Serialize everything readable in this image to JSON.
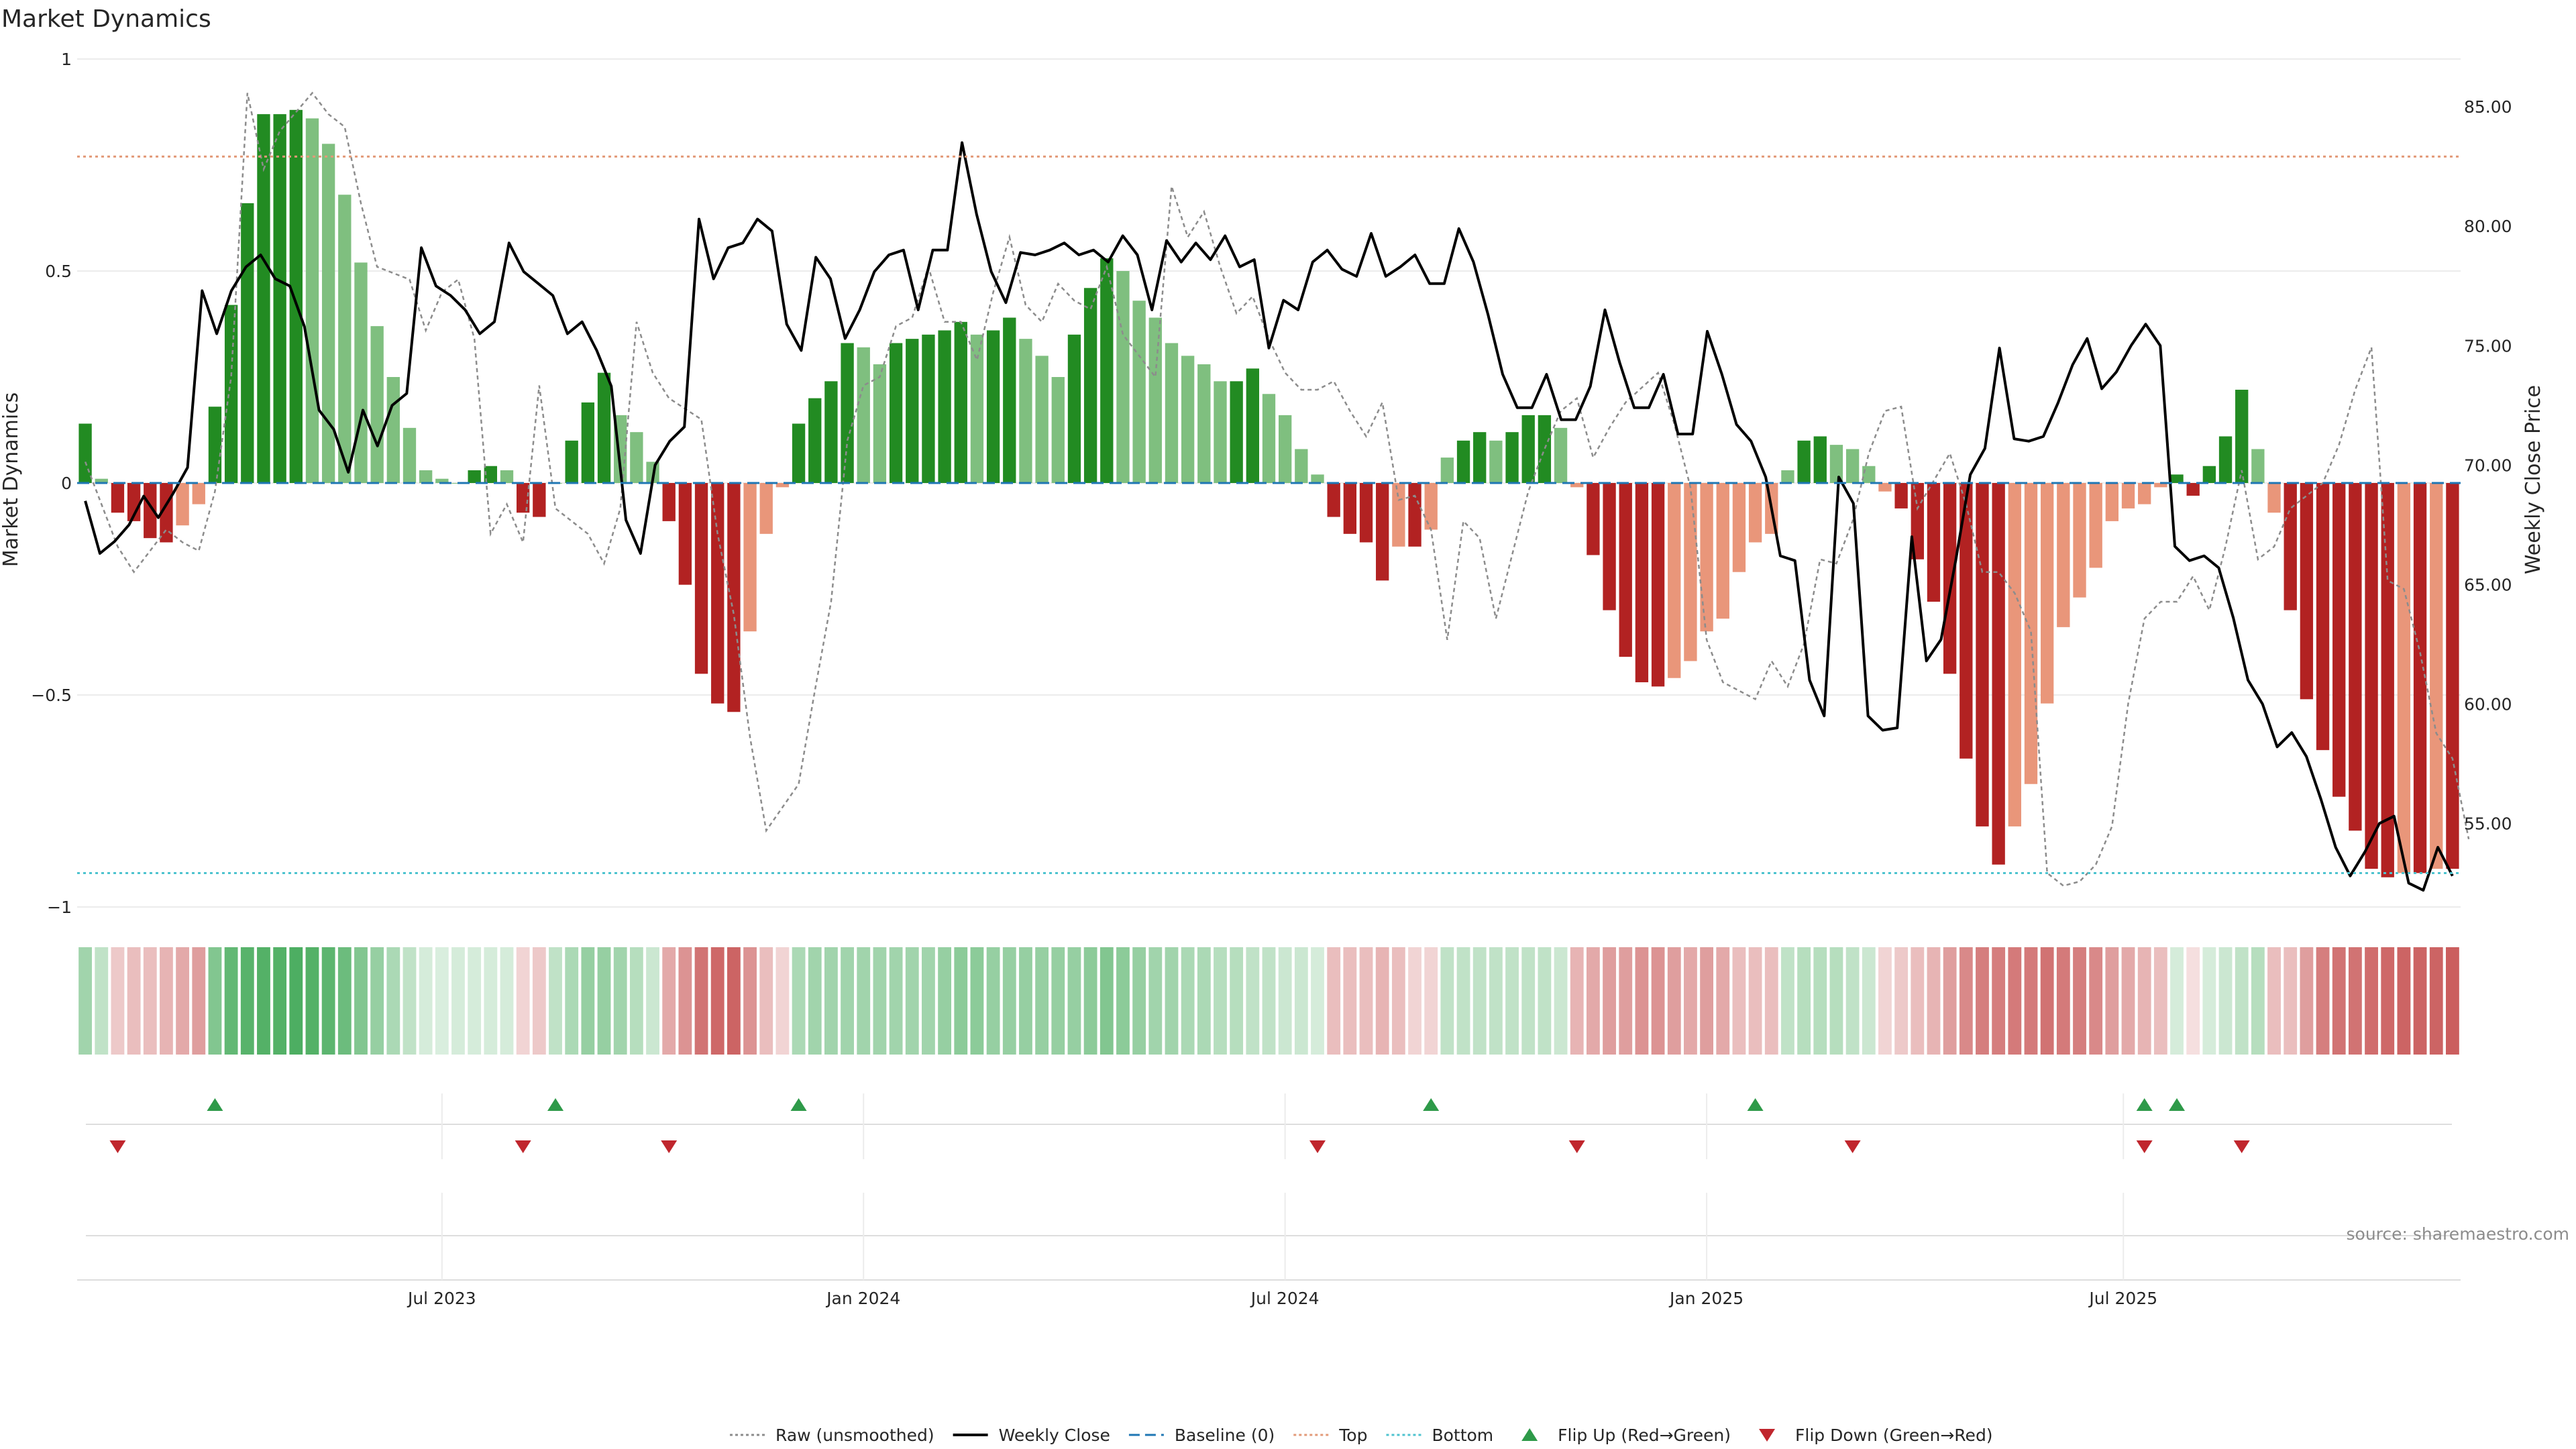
{
  "chart_data": {
    "type": "bar",
    "title": "Market Dynamics",
    "ylabel": "Market Dynamics",
    "y2label": "Weekly Close Price",
    "ylim": [
      -1,
      1
    ],
    "y2lim": [
      51.5,
      87.0
    ],
    "yticks": [
      {
        "value": 1,
        "label": "1"
      },
      {
        "value": 0.5,
        "label": "0.5"
      },
      {
        "value": 0,
        "label": "0"
      },
      {
        "value": -0.5,
        "label": "−0.5"
      },
      {
        "value": -1,
        "label": "−1"
      }
    ],
    "y2ticks": [
      {
        "value": 85,
        "label": "85.00"
      },
      {
        "value": 80,
        "label": "80.00"
      },
      {
        "value": 75,
        "label": "75.00"
      },
      {
        "value": 70,
        "label": "70.00"
      },
      {
        "value": 65,
        "label": "65.00"
      },
      {
        "value": 60,
        "label": "60.00"
      },
      {
        "value": 55,
        "label": "55.00"
      }
    ],
    "xticks": [
      {
        "week": 22,
        "label": "Jul 2023"
      },
      {
        "week": 48,
        "label": "Jan 2024"
      },
      {
        "week": 74,
        "label": "Jul 2024"
      },
      {
        "week": 100,
        "label": "Jan 2025"
      },
      {
        "week": 125.7,
        "label": "Jul 2025"
      }
    ],
    "top": 0.77,
    "bottom": -0.92,
    "baseline": 0,
    "bar_colors": {
      "up_strong": "#228b22",
      "up_weak": "#7fbf7f",
      "down_strong": "#b22222",
      "down_weak": "#e9967a"
    },
    "smoothed": [
      0.14,
      0.01,
      -0.07,
      -0.09,
      -0.13,
      -0.14,
      -0.1,
      -0.05,
      0.18,
      0.42,
      0.66,
      0.87,
      0.87,
      0.88,
      0.86,
      0.8,
      0.68,
      0.52,
      0.37,
      0.25,
      0.13,
      0.03,
      0.01,
      0.0,
      0.03,
      0.04,
      0.03,
      -0.07,
      -0.08,
      0.0,
      0.1,
      0.19,
      0.26,
      0.16,
      0.12,
      0.05,
      -0.09,
      -0.24,
      -0.45,
      -0.52,
      -0.54,
      -0.35,
      -0.12,
      -0.01,
      0.14,
      0.2,
      0.24,
      0.33,
      0.32,
      0.28,
      0.33,
      0.34,
      0.35,
      0.36,
      0.38,
      0.35,
      0.36,
      0.39,
      0.34,
      0.3,
      0.25,
      0.35,
      0.46,
      0.53,
      0.5,
      0.43,
      0.39,
      0.33,
      0.3,
      0.28,
      0.24,
      0.24,
      0.27,
      0.21,
      0.16,
      0.08,
      0.02,
      -0.08,
      -0.12,
      -0.14,
      -0.23,
      -0.15,
      -0.15,
      -0.11,
      0.06,
      0.1,
      0.12,
      0.1,
      0.12,
      0.16,
      0.16,
      0.13,
      -0.01,
      -0.17,
      -0.3,
      -0.41,
      -0.47,
      -0.48,
      -0.46,
      -0.42,
      -0.35,
      -0.32,
      -0.21,
      -0.14,
      -0.12,
      0.03,
      0.1,
      0.11,
      0.09,
      0.08,
      0.04,
      -0.02,
      -0.06,
      -0.18,
      -0.28,
      -0.45,
      -0.65,
      -0.81,
      -0.9,
      -0.81,
      -0.71,
      -0.52,
      -0.34,
      -0.27,
      -0.2,
      -0.09,
      -0.06,
      -0.05,
      -0.01,
      0.02,
      -0.03,
      0.04,
      0.11,
      0.22,
      0.08,
      -0.07,
      -0.3,
      -0.51,
      -0.63,
      -0.74,
      -0.82,
      -0.91,
      -0.93,
      -0.92,
      -0.92,
      -0.91,
      -0.91
    ],
    "raw": [
      0.05,
      -0.15,
      -0.21,
      -0.11,
      -0.14,
      -0.16,
      -0.02,
      0.25,
      0.92,
      0.74,
      0.83,
      0.92,
      0.87,
      0.84,
      0.66,
      0.51,
      0.48,
      0.36,
      0.45,
      0.48,
      0.34,
      -0.12,
      -0.05,
      -0.14,
      0.23,
      -0.06,
      -0.12,
      -0.19,
      -0.06,
      0.38,
      0.26,
      0.2,
      0.15,
      -0.12,
      -0.31,
      -0.6,
      -0.82,
      -0.71,
      -0.49,
      -0.28,
      0.1,
      0.23,
      0.25,
      0.37,
      0.39,
      0.51,
      0.38,
      0.38,
      0.29,
      0.45,
      0.58,
      0.42,
      0.38,
      0.47,
      0.43,
      0.41,
      0.51,
      0.35,
      0.25,
      0.7,
      0.58,
      0.64,
      0.51,
      0.4,
      0.44,
      0.34,
      0.26,
      0.22,
      0.22,
      0.24,
      0.17,
      0.11,
      0.19,
      -0.04,
      -0.03,
      -0.11,
      -0.37,
      -0.09,
      -0.13,
      -0.32,
      -0.02,
      0.08,
      0.17,
      0.2,
      0.06,
      0.13,
      0.19,
      0.26,
      0.14,
      -0.01,
      -0.37,
      -0.47,
      -0.51,
      -0.42,
      -0.48,
      -0.38,
      -0.18,
      -0.19,
      -0.09,
      0.07,
      0.17,
      0.18,
      -0.06,
      0.07,
      -0.05,
      -0.21,
      -0.21,
      -0.26,
      -0.35,
      -0.92,
      -0.95,
      -0.94,
      -0.9,
      -0.81,
      -0.52,
      -0.32,
      -0.28,
      -0.28,
      -0.22,
      -0.3,
      -0.15,
      0.03,
      -0.18,
      -0.15,
      -0.06,
      0.0,
      0.09,
      0.22,
      0.32,
      -0.23,
      -0.25,
      -0.4,
      -0.59,
      -0.65,
      -0.84,
      -0.89,
      -0.9,
      -0.92,
      -0.9
    ],
    "raw_x": [
      0,
      2,
      3,
      5,
      6,
      7,
      8,
      9,
      10,
      11,
      12,
      14,
      15,
      16,
      17,
      18,
      20,
      21,
      22,
      23,
      24,
      25,
      26,
      27,
      28,
      29,
      31,
      32,
      33,
      34,
      35,
      36,
      38,
      39,
      40,
      41,
      42,
      44,
      45,
      46,
      47,
      48,
      49,
      50,
      51,
      52,
      53,
      54,
      55,
      56,
      57,
      58,
      59,
      60,
      61,
      62,
      63,
      64,
      66,
      67,
      68,
      69,
      70,
      71,
      72,
      73,
      74,
      75,
      76,
      77,
      78,
      79,
      80,
      81,
      82,
      83,
      84,
      85,
      86,
      87,
      89,
      90,
      91,
      92,
      93,
      94,
      95,
      97,
      98,
      99,
      100,
      101,
      103,
      104,
      105,
      106,
      107,
      108,
      109,
      110,
      111,
      112,
      113,
      115,
      116,
      117,
      118,
      119,
      120,
      121,
      122,
      123,
      124,
      125,
      126,
      127,
      128,
      129,
      130,
      131,
      132,
      133,
      134,
      135,
      136,
      138,
      139,
      140,
      141,
      142,
      143,
      144,
      145,
      146,
      147
    ],
    "price": [
      68.5,
      66.3,
      66.8,
      67.5,
      68.7,
      67.8,
      68.8,
      69.9,
      77.3,
      75.5,
      77.3,
      78.3,
      78.8,
      77.8,
      77.5,
      75.8,
      72.3,
      71.5,
      69.7,
      72.3,
      70.8,
      72.5,
      73.0,
      79.1,
      77.5,
      77.1,
      76.5,
      75.5,
      76.0,
      79.3,
      78.1,
      77.6,
      77.1,
      75.5,
      76.0,
      74.8,
      73.3,
      67.7,
      66.3,
      70.0,
      71.0,
      71.6,
      80.3,
      77.8,
      79.1,
      79.3,
      80.3,
      79.8,
      75.9,
      74.8,
      78.7,
      77.8,
      75.3,
      76.5,
      78.1,
      78.8,
      79.0,
      76.5,
      79.0,
      79.0,
      83.5,
      80.5,
      78.1,
      76.8,
      78.9,
      78.8,
      79.0,
      79.3,
      78.8,
      79.0,
      78.5,
      79.6,
      78.8,
      76.5,
      79.4,
      78.5,
      79.3,
      78.6,
      79.6,
      78.3,
      78.6,
      74.9,
      76.9,
      76.5,
      78.5,
      79.0,
      78.2,
      77.9,
      79.7,
      77.9,
      78.3,
      78.8,
      77.6,
      77.6,
      79.9,
      78.5,
      76.3,
      73.8,
      72.4,
      72.4,
      73.8,
      71.9,
      71.9,
      73.3,
      76.5,
      74.3,
      72.4,
      72.4,
      73.8,
      71.3,
      71.3,
      75.6,
      73.8,
      71.7,
      71.0,
      69.5,
      66.2,
      66.0,
      61.0,
      59.5,
      69.5,
      68.4,
      59.5,
      58.9,
      59.0,
      67.0,
      61.8,
      62.7,
      66.0,
      69.6,
      70.7,
      74.9,
      71.1,
      71.0,
      71.2,
      72.6,
      74.2,
      75.3,
      73.2,
      73.9,
      75.0,
      75.9,
      75.0,
      66.6,
      66.0,
      66.2,
      65.7,
      63.6,
      61.0,
      60.0,
      58.2,
      58.8,
      57.8,
      56.0,
      54.0,
      52.8,
      53.8,
      55.0,
      55.3,
      52.5,
      52.2,
      54.0,
      52.8
    ],
    "regime_strength": [
      0.45,
      0.3,
      0.25,
      0.3,
      0.3,
      0.35,
      0.4,
      0.45,
      0.6,
      0.75,
      0.8,
      0.82,
      0.82,
      0.85,
      0.82,
      0.78,
      0.7,
      0.6,
      0.5,
      0.4,
      0.3,
      0.2,
      0.18,
      0.2,
      0.2,
      0.2,
      0.2,
      0.2,
      0.25,
      0.3,
      0.4,
      0.5,
      0.5,
      0.45,
      0.35,
      0.25,
      0.4,
      0.5,
      0.65,
      0.7,
      0.72,
      0.5,
      0.3,
      0.2,
      0.4,
      0.45,
      0.45,
      0.45,
      0.45,
      0.45,
      0.45,
      0.45,
      0.45,
      0.5,
      0.55,
      0.55,
      0.5,
      0.5,
      0.5,
      0.5,
      0.5,
      0.5,
      0.55,
      0.6,
      0.55,
      0.5,
      0.45,
      0.45,
      0.4,
      0.4,
      0.35,
      0.35,
      0.3,
      0.3,
      0.25,
      0.25,
      0.2,
      0.3,
      0.3,
      0.3,
      0.35,
      0.3,
      0.2,
      0.2,
      0.3,
      0.3,
      0.3,
      0.3,
      0.3,
      0.3,
      0.3,
      0.25,
      0.35,
      0.4,
      0.45,
      0.45,
      0.5,
      0.5,
      0.45,
      0.4,
      0.45,
      0.4,
      0.3,
      0.3,
      0.3,
      0.3,
      0.35,
      0.35,
      0.35,
      0.3,
      0.25,
      0.2,
      0.25,
      0.3,
      0.35,
      0.45,
      0.55,
      0.6,
      0.6,
      0.62,
      0.62,
      0.65,
      0.62,
      0.6,
      0.55,
      0.45,
      0.4,
      0.35,
      0.3,
      0.2,
      0.15,
      0.2,
      0.25,
      0.3,
      0.35,
      0.3,
      0.3,
      0.45,
      0.6,
      0.65,
      0.65,
      0.68,
      0.7,
      0.72,
      0.72,
      0.72,
      0.75,
      0.75
    ],
    "flip_up_weeks": [
      8,
      29,
      44,
      83,
      103,
      127,
      129
    ],
    "flip_down_weeks": [
      2,
      27,
      36,
      76,
      92,
      109,
      127,
      133
    ],
    "markers": {
      "flip_up": "#2e9a49",
      "flip_down": "#c0262d"
    },
    "series_colors": {
      "raw": "#8c8c8c",
      "close": "#000000",
      "baseline": "#1f77b4",
      "top": "#e39a78",
      "bottom": "#4ec3cf"
    },
    "legend_position": "bottom-center",
    "legend": [
      {
        "label": "Raw (unsmoothed)",
        "kind": "dotted-line",
        "color": "#8c8c8c"
      },
      {
        "label": "Weekly Close",
        "kind": "solid-line",
        "color": "#000000"
      },
      {
        "label": "Baseline (0)",
        "kind": "dashed-line",
        "color": "#1f77b4"
      },
      {
        "label": "Top",
        "kind": "dotted-line",
        "color": "#e39a78"
      },
      {
        "label": "Bottom",
        "kind": "dotted-line",
        "color": "#4ec3cf"
      },
      {
        "label": "Flip Up (Red→Green)",
        "kind": "triangle-up",
        "color": "#2e9a49"
      },
      {
        "label": "Flip Down (Green→Red)",
        "kind": "triangle-down",
        "color": "#c0262d"
      }
    ],
    "source": "source: sharemaestro.com"
  }
}
